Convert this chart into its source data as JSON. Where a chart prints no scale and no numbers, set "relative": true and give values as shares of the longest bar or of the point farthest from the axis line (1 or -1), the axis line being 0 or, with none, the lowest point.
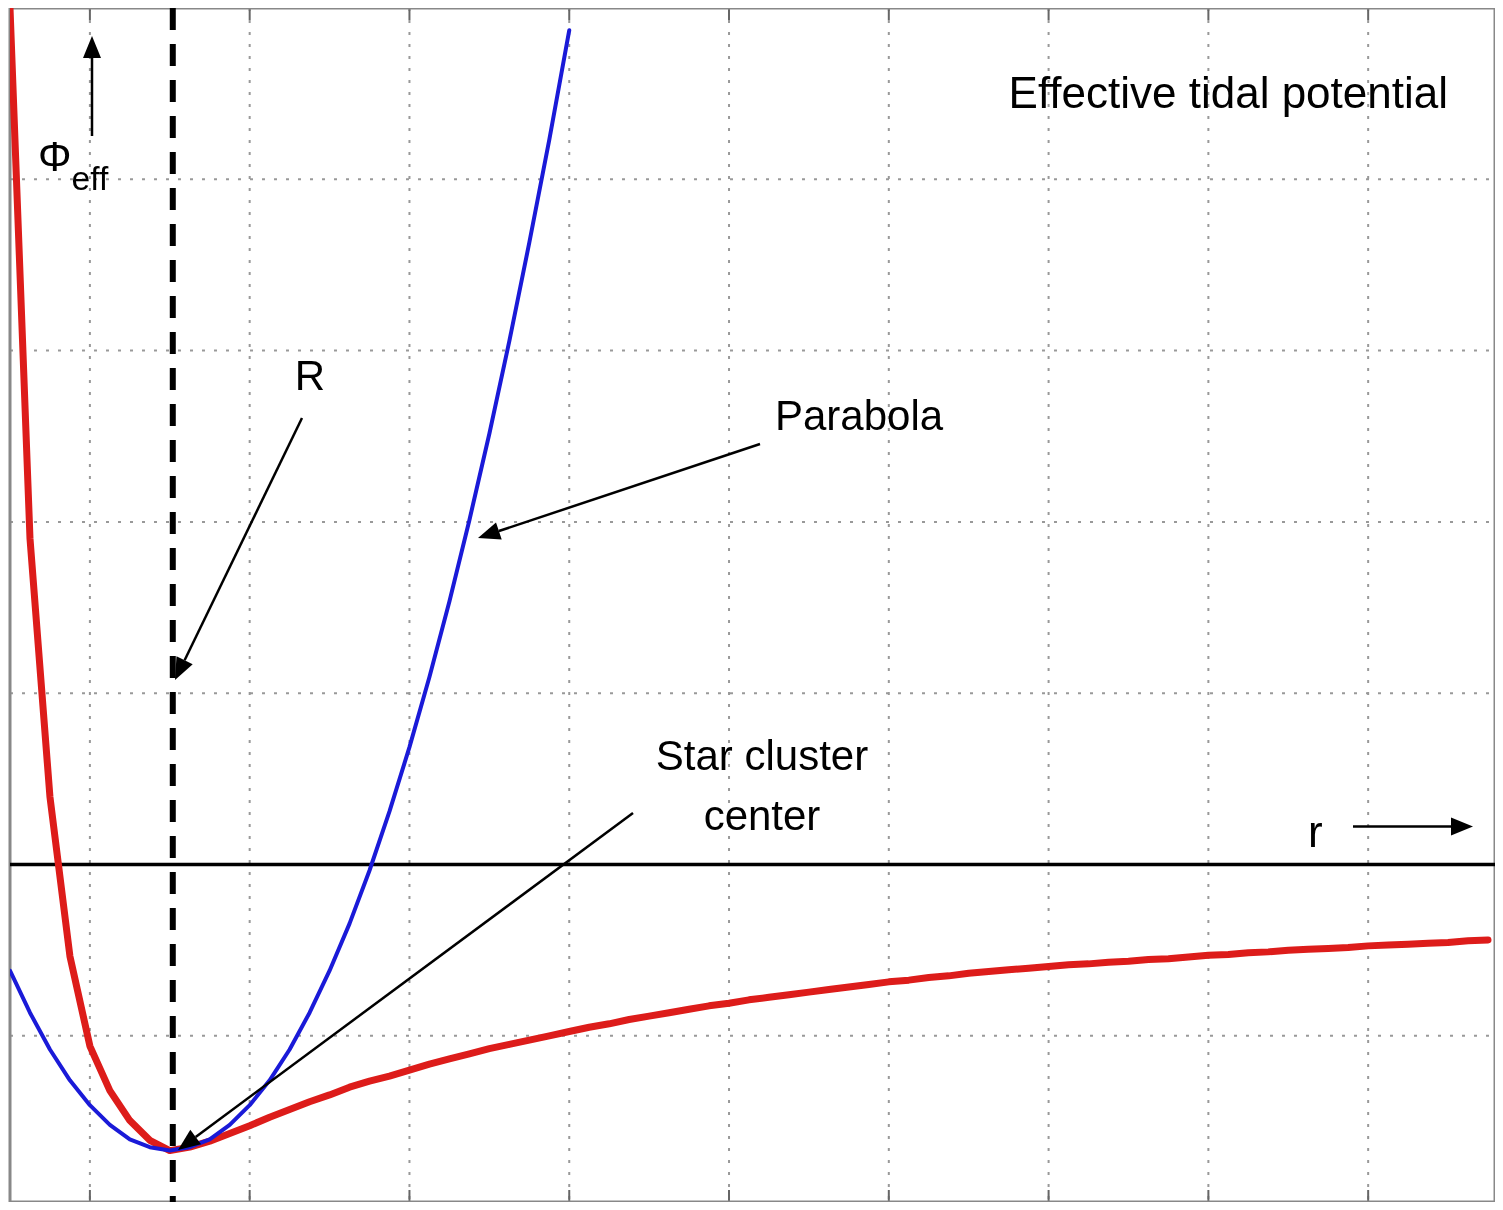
{
  "chart_data": {
    "type": "line",
    "title": "Effective tidal potential",
    "xlabel": "r",
    "ylabel": "Φ$_{eff}$",
    "relative": true,
    "categories": [
      null,
      null,
      null,
      null,
      null,
      null,
      null,
      null,
      null,
      null,
      null,
      null,
      null,
      null,
      null,
      null,
      null,
      null,
      null,
      null,
      null,
      null,
      null,
      null,
      null,
      null,
      null,
      null,
      null,
      null,
      null,
      null,
      null,
      null,
      null,
      null,
      null,
      null,
      null,
      null,
      null,
      null,
      null,
      null,
      null,
      null,
      null,
      null,
      null,
      null,
      null,
      null,
      null,
      null,
      null,
      null,
      null,
      null,
      null,
      null,
      null,
      null,
      null,
      null,
      null,
      null,
      null,
      null,
      null,
      null,
      null,
      null,
      null,
      null,
      null
    ],
    "grid": true,
    "line_style": "solid",
    "marker": "none",
    "series": [
      {
        "color": "#dd1c1a",
        "values": [
          1.0,
          0.381,
          0.079,
          -0.107,
          -0.212,
          -0.264,
          -0.299,
          -0.322,
          -0.334,
          -0.33,
          -0.323,
          -0.314,
          -0.305,
          -0.295,
          -0.286,
          -0.277,
          -0.269,
          -0.26,
          -0.253,
          -0.247,
          -0.24,
          -0.233,
          -0.227,
          -0.221,
          -0.215,
          -0.21,
          -0.205,
          -0.2,
          -0.195,
          -0.19,
          -0.186,
          -0.181,
          -0.177,
          -0.173,
          -0.169,
          -0.165,
          -0.162,
          -0.158,
          -0.155,
          -0.152,
          -0.149,
          -0.146,
          -0.143,
          -0.14,
          -0.137,
          -0.135,
          -0.132,
          -0.13,
          -0.127,
          -0.125,
          -0.123,
          -0.121,
          -0.119,
          -0.117,
          -0.116,
          -0.114,
          -0.113,
          -0.111,
          -0.11,
          -0.108,
          -0.106,
          -0.105,
          -0.103,
          -0.102,
          -0.1,
          -0.099,
          -0.098,
          -0.097,
          -0.095,
          -0.094,
          -0.093,
          -0.092,
          -0.091,
          -0.089,
          -0.088
        ]
      },
      {
        "color": "#1a1ad8",
        "values": [
          -0.124,
          -0.173,
          -0.216,
          -0.252,
          -0.281,
          -0.304,
          -0.321,
          -0.33,
          -0.334,
          -0.33,
          -0.321,
          -0.304,
          -0.281,
          -0.252,
          -0.216,
          -0.173,
          -0.124,
          -0.069,
          -0.007,
          0.062,
          0.137,
          0.219,
          0.307,
          0.402,
          0.503,
          0.611,
          0.726,
          0.846,
          0.974,
          null,
          null,
          null,
          null,
          null,
          null,
          null,
          null,
          null,
          null,
          null,
          null,
          null,
          null,
          null,
          null,
          null,
          null,
          null,
          null,
          null,
          null,
          null,
          null,
          null,
          null,
          null,
          null,
          null,
          null,
          null,
          null,
          null,
          null,
          null,
          null,
          null,
          null,
          null,
          null,
          null,
          null,
          null,
          null,
          null,
          null
        ]
      }
    ],
    "annotations": [
      "R",
      "Parabola",
      "Star cluster center"
    ]
  }
}
